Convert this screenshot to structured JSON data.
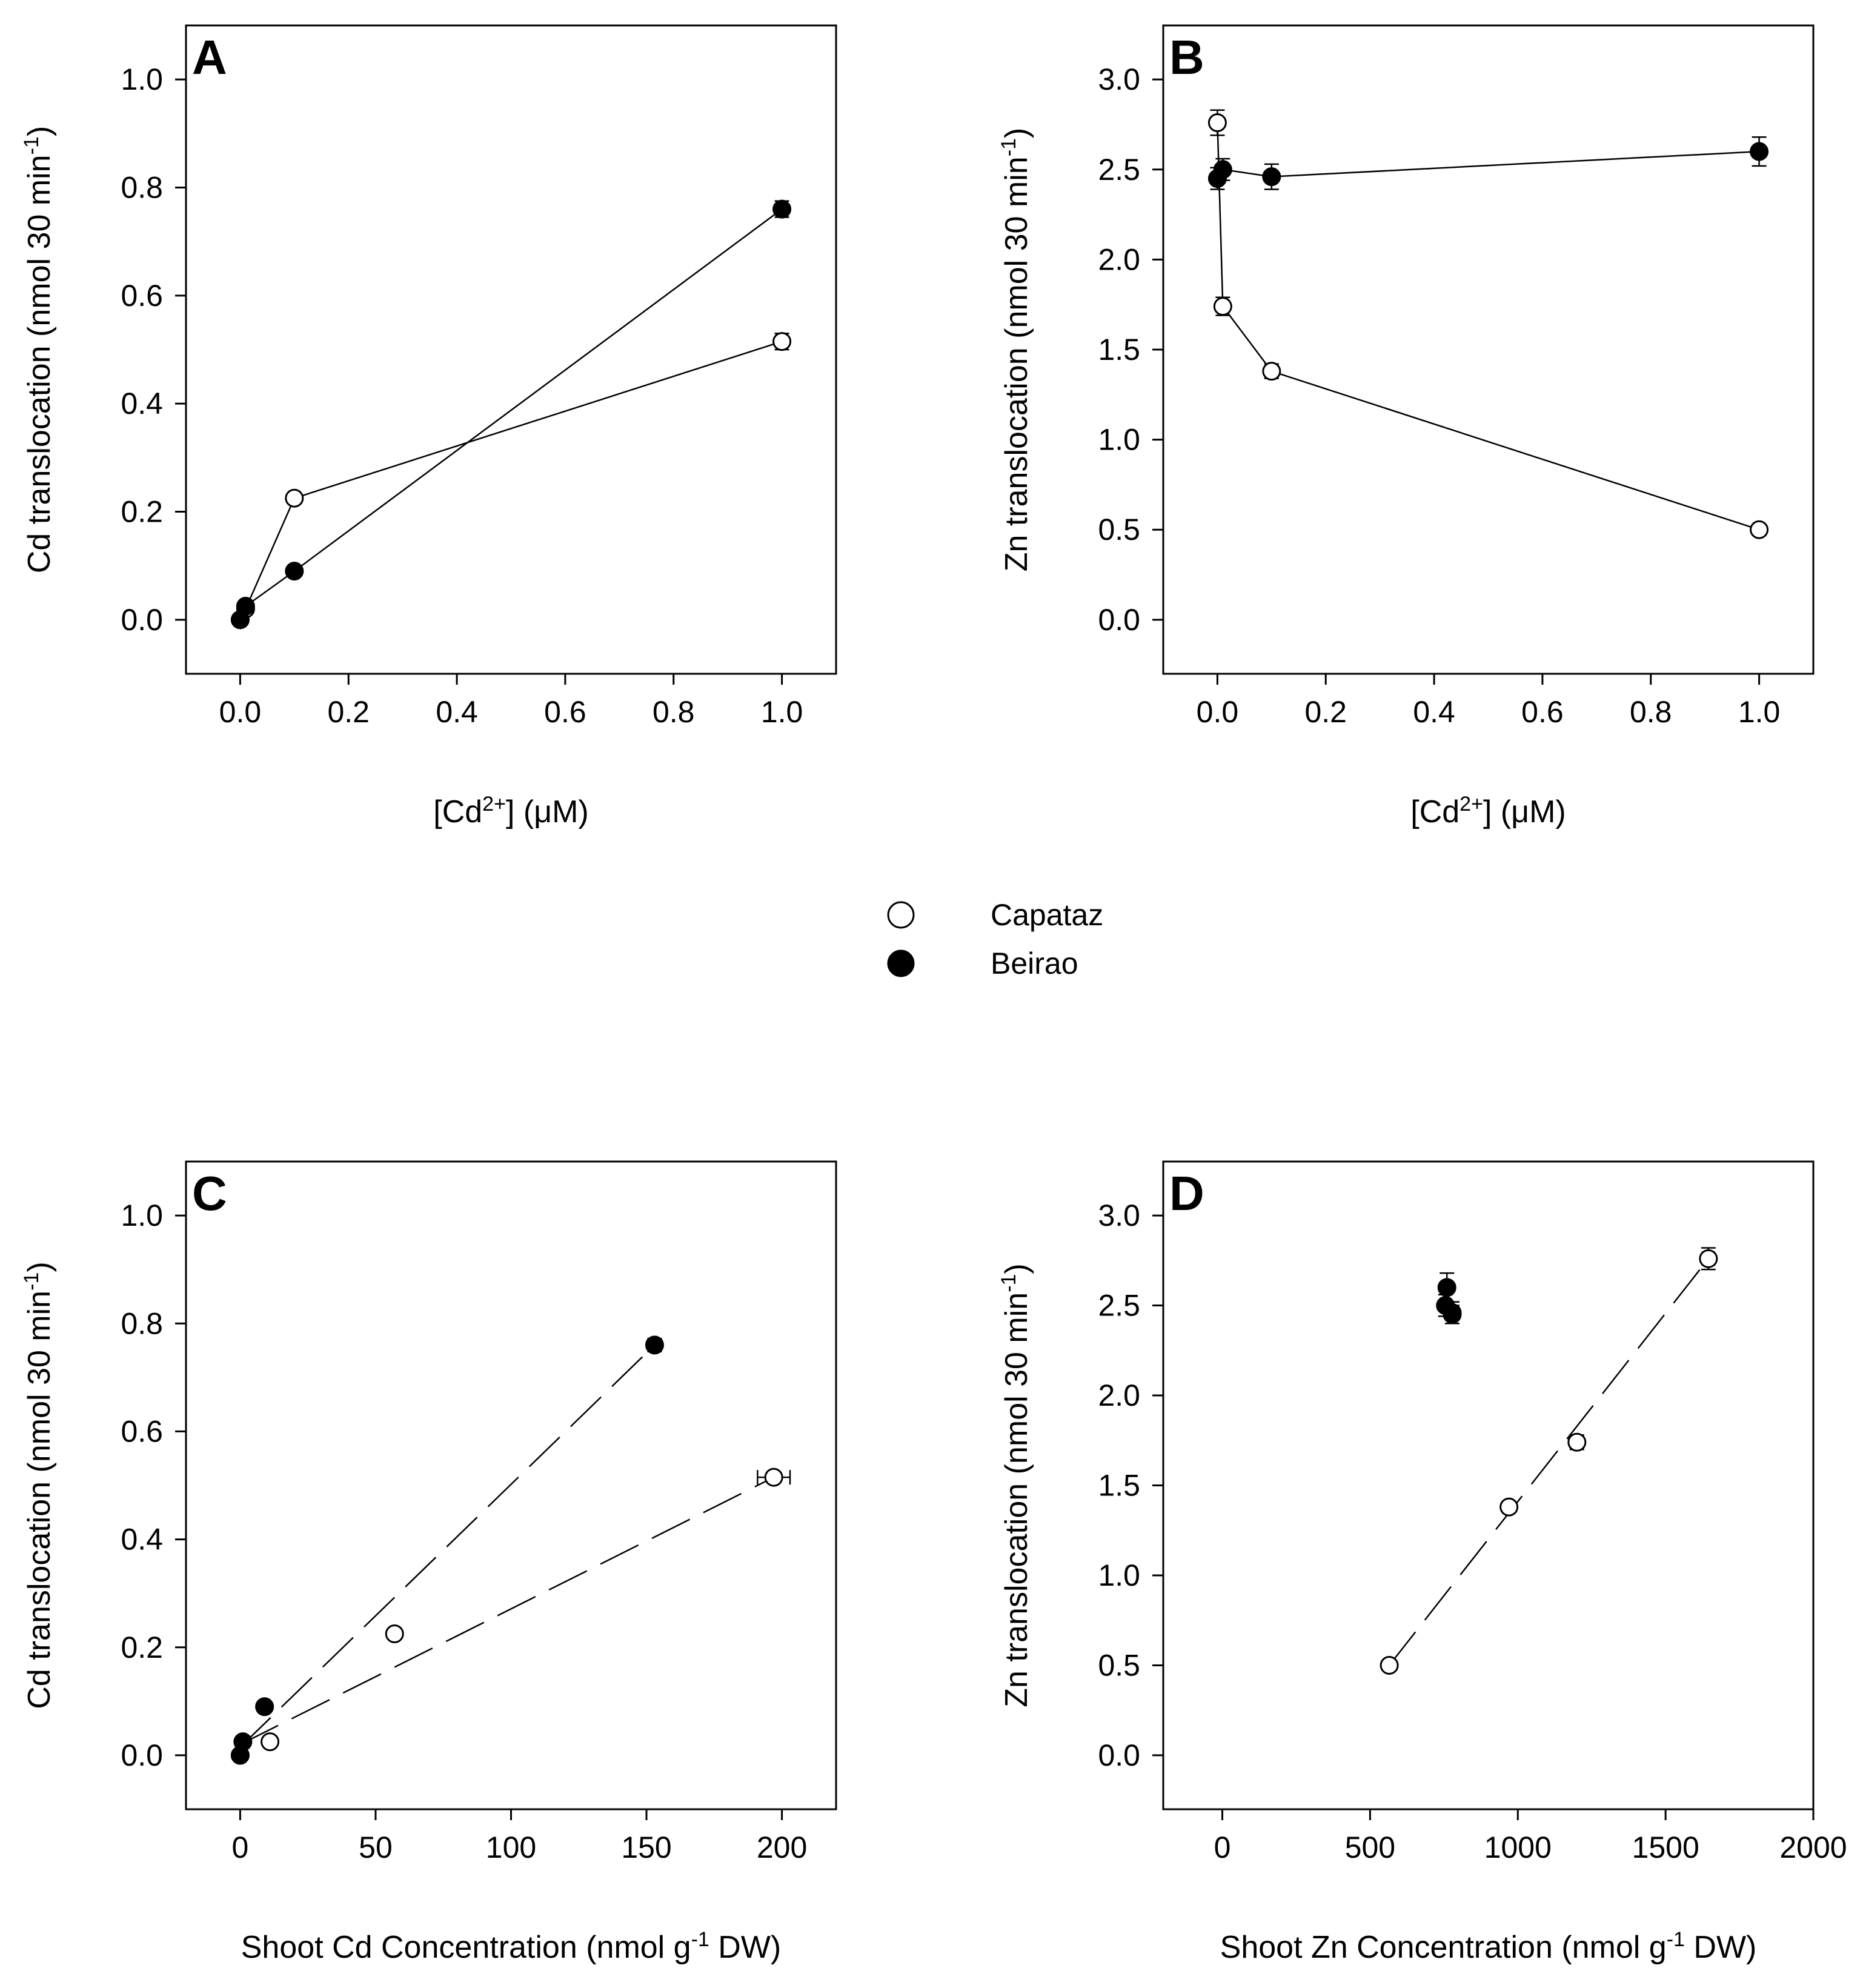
{
  "legend": [
    {
      "name": "Capataz",
      "marker": "open-circle"
    },
    {
      "name": "Beirao",
      "marker": "filled-circle"
    }
  ],
  "colors": {
    "stroke": "#000000",
    "fill_open": "#ffffff",
    "fill_closed": "#000000"
  },
  "chart_data": [
    {
      "id": "A",
      "type": "line",
      "panel_label": "A",
      "xlabel": {
        "main": "[Cd",
        "sup": "2+",
        "tail": "] (μM)"
      },
      "ylabel": {
        "main": "Cd translocation (nmol 30 min",
        "sup": "-1",
        "tail": ")"
      },
      "xlim": [
        -0.1,
        1.1
      ],
      "ylim": [
        -0.1,
        1.1
      ],
      "xticks": [
        0.0,
        0.2,
        0.4,
        0.6,
        0.8,
        1.0
      ],
      "xtick_labels": [
        "0.0",
        "0.2",
        "0.4",
        "0.6",
        "0.8",
        "1.0"
      ],
      "yticks": [
        0.0,
        0.2,
        0.4,
        0.6,
        0.8,
        1.0
      ],
      "ytick_labels": [
        "0.0",
        "0.2",
        "0.4",
        "0.6",
        "0.8",
        "1.0"
      ],
      "line_style": "solid",
      "series": [
        {
          "name": "Capataz",
          "marker": "open",
          "x": [
            0,
            0.01,
            0.1,
            1.0
          ],
          "y": [
            0.0,
            0.02,
            0.225,
            0.515
          ],
          "yerr": [
            0,
            0,
            0,
            0.015
          ]
        },
        {
          "name": "Beirao",
          "marker": "filled",
          "x": [
            0,
            0.01,
            0.1,
            1.0
          ],
          "y": [
            0.0,
            0.025,
            0.09,
            0.76
          ],
          "yerr": [
            0,
            0,
            0,
            0.015
          ]
        }
      ]
    },
    {
      "id": "B",
      "type": "line",
      "panel_label": "B",
      "xlabel": {
        "main": "[Cd",
        "sup": "2+",
        "tail": "] (μM)"
      },
      "ylabel": {
        "main": "Zn translocation (nmol 30 min",
        "sup": "-1",
        "tail": ")"
      },
      "xlim": [
        -0.1,
        1.1
      ],
      "ylim": [
        -0.3,
        3.3
      ],
      "xticks": [
        0.0,
        0.2,
        0.4,
        0.6,
        0.8,
        1.0
      ],
      "xtick_labels": [
        "0.0",
        "0.2",
        "0.4",
        "0.6",
        "0.8",
        "1.0"
      ],
      "yticks": [
        0.0,
        0.5,
        1.0,
        1.5,
        2.0,
        2.5,
        3.0
      ],
      "ytick_labels": [
        "0.0",
        "0.5",
        "1.0",
        "1.5",
        "2.0",
        "2.5",
        "3.0"
      ],
      "line_style": "solid",
      "series": [
        {
          "name": "Capataz",
          "marker": "open",
          "x": [
            0,
            0.01,
            0.1,
            1.0
          ],
          "y": [
            2.76,
            1.74,
            1.38,
            0.5
          ],
          "yerr": [
            0.07,
            0.05,
            0.04,
            0.02
          ]
        },
        {
          "name": "Beirao",
          "marker": "filled",
          "x": [
            0,
            0.01,
            0.1,
            1.0
          ],
          "y": [
            2.45,
            2.5,
            2.46,
            2.6
          ],
          "yerr": [
            0.06,
            0.06,
            0.07,
            0.08
          ]
        }
      ]
    },
    {
      "id": "C",
      "type": "scatter",
      "panel_label": "C",
      "xlabel": {
        "main": "Shoot Cd Concentration (nmol g",
        "sup": "-1",
        "tail": " DW)"
      },
      "ylabel": {
        "main": "Cd translocation (nmol 30 min",
        "sup": "-1",
        "tail": ")"
      },
      "xlim": [
        -20,
        220
      ],
      "ylim": [
        -0.1,
        1.1
      ],
      "xticks": [
        0,
        50,
        100,
        150,
        200
      ],
      "xtick_labels": [
        "0",
        "50",
        "100",
        "150",
        "200"
      ],
      "yticks": [
        0.0,
        0.2,
        0.4,
        0.6,
        0.8,
        1.0
      ],
      "ytick_labels": [
        "0.0",
        "0.2",
        "0.4",
        "0.6",
        "0.8",
        "1.0"
      ],
      "line_style": "dashed",
      "series": [
        {
          "name": "Capataz",
          "marker": "open",
          "x": [
            0,
            11,
            57,
            197
          ],
          "y": [
            0.0,
            0.025,
            0.225,
            0.515
          ],
          "yerr": [
            0,
            0,
            0,
            0.01
          ],
          "xerr": [
            0,
            0,
            0,
            6
          ]
        },
        {
          "name": "Beirao",
          "marker": "filled",
          "x": [
            0,
            1,
            9,
            153
          ],
          "y": [
            0.0,
            0.025,
            0.09,
            0.76
          ],
          "yerr": [
            0,
            0,
            0,
            0.012
          ],
          "xerr": [
            0,
            0,
            0,
            2
          ]
        }
      ],
      "fit_lines": [
        {
          "series": "Capataz",
          "x": [
            0,
            197
          ],
          "y": [
            0.02,
            0.515
          ]
        },
        {
          "series": "Beirao",
          "x": [
            0,
            153
          ],
          "y": [
            0.015,
            0.76
          ]
        }
      ]
    },
    {
      "id": "D",
      "type": "scatter",
      "panel_label": "D",
      "xlabel": {
        "main": "Shoot Zn Concentration (nmol g",
        "sup": "-1",
        "tail": " DW)"
      },
      "ylabel": {
        "main": "Zn translocation (nmol 30 min",
        "sup": "-1",
        "tail": ")"
      },
      "xlim": [
        -200,
        2000
      ],
      "ylim": [
        -0.3,
        3.3
      ],
      "xticks": [
        0,
        500,
        1000,
        1500,
        2000
      ],
      "xtick_labels": [
        "0",
        "500",
        "1000",
        "1500",
        "2000"
      ],
      "yticks": [
        0.0,
        0.5,
        1.0,
        1.5,
        2.0,
        2.5,
        3.0
      ],
      "ytick_labels": [
        "0.0",
        "0.5",
        "1.0",
        "1.5",
        "2.0",
        "2.5",
        "3.0"
      ],
      "line_style": "dashed",
      "series": [
        {
          "name": "Capataz",
          "marker": "open",
          "x": [
            565,
            970,
            1200,
            1645
          ],
          "y": [
            0.5,
            1.38,
            1.74,
            2.76
          ],
          "yerr": [
            0,
            0.03,
            0.04,
            0.06
          ],
          "xerr": [
            0,
            15,
            15,
            20
          ]
        },
        {
          "name": "Beirao",
          "marker": "filled",
          "x": [
            755,
            760,
            778,
            778
          ],
          "y": [
            2.5,
            2.6,
            2.45,
            2.46
          ],
          "yerr": [
            0.06,
            0.08,
            0.05,
            0.06
          ],
          "xerr": [
            0,
            0,
            0,
            0
          ]
        }
      ],
      "fit_lines": [
        {
          "series": "Capataz",
          "x": [
            565,
            1645
          ],
          "y": [
            0.5,
            2.76
          ]
        }
      ]
    }
  ]
}
